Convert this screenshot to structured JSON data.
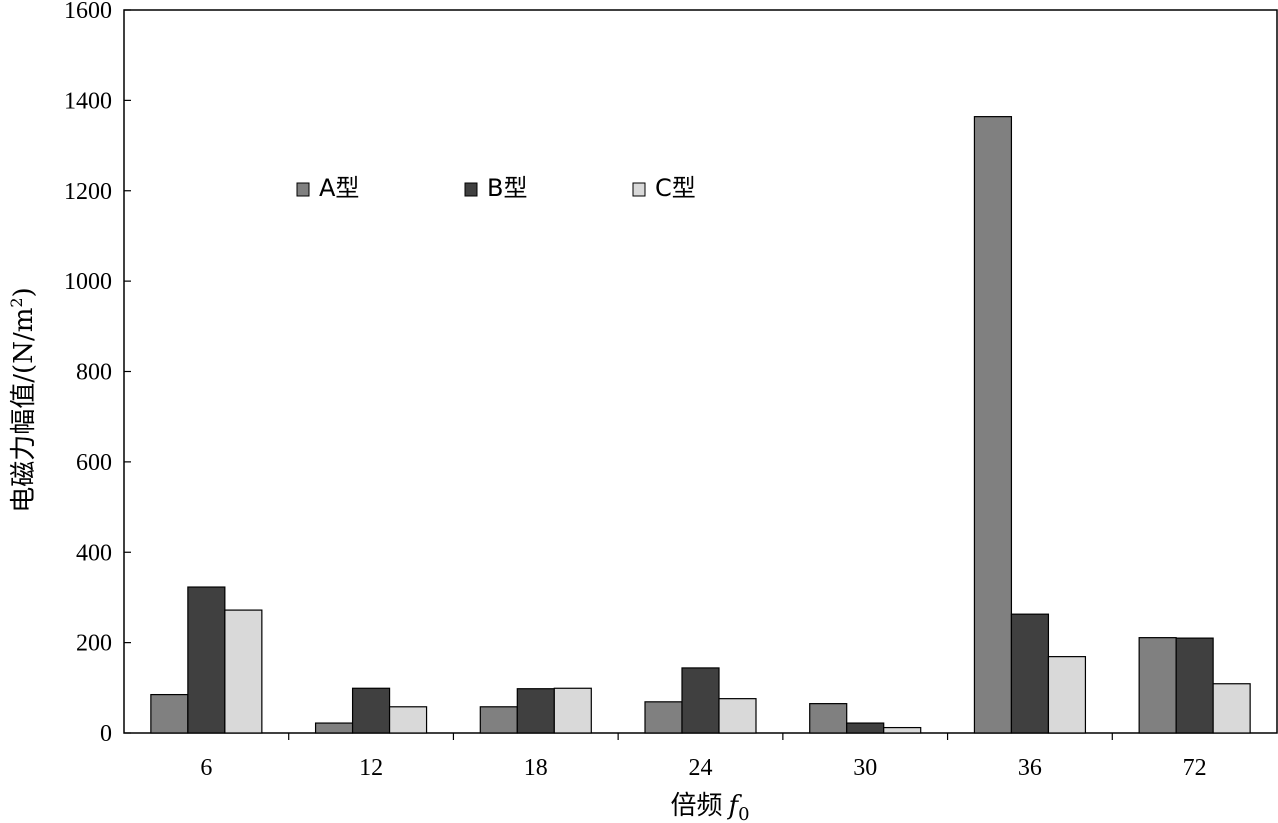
{
  "chart_data": {
    "type": "bar",
    "categories": [
      "6",
      "12",
      "18",
      "24",
      "30",
      "36",
      "72"
    ],
    "series": [
      {
        "name": "A型",
        "color": "#808080",
        "values": [
          85,
          22,
          58,
          69,
          65,
          1364,
          211
        ]
      },
      {
        "name": "B型",
        "color": "#404040",
        "values": [
          323,
          99,
          98,
          144,
          22,
          263,
          210
        ]
      },
      {
        "name": "C型",
        "color": "#d9d9d9",
        "values": [
          272,
          58,
          99,
          76,
          12,
          169,
          109
        ]
      }
    ],
    "ylim": [
      0,
      1600
    ],
    "yticks": [
      0,
      200,
      400,
      600,
      800,
      1000,
      1200,
      1400,
      1600
    ],
    "ylabel_main": "电磁力幅值/(N/m",
    "ylabel_sup": "2",
    "ylabel_close": ")",
    "xlabel_main": "倍频",
    "xlabel_var": "f",
    "xlabel_sub": "0",
    "legend_position": "top-left",
    "grid": false
  }
}
